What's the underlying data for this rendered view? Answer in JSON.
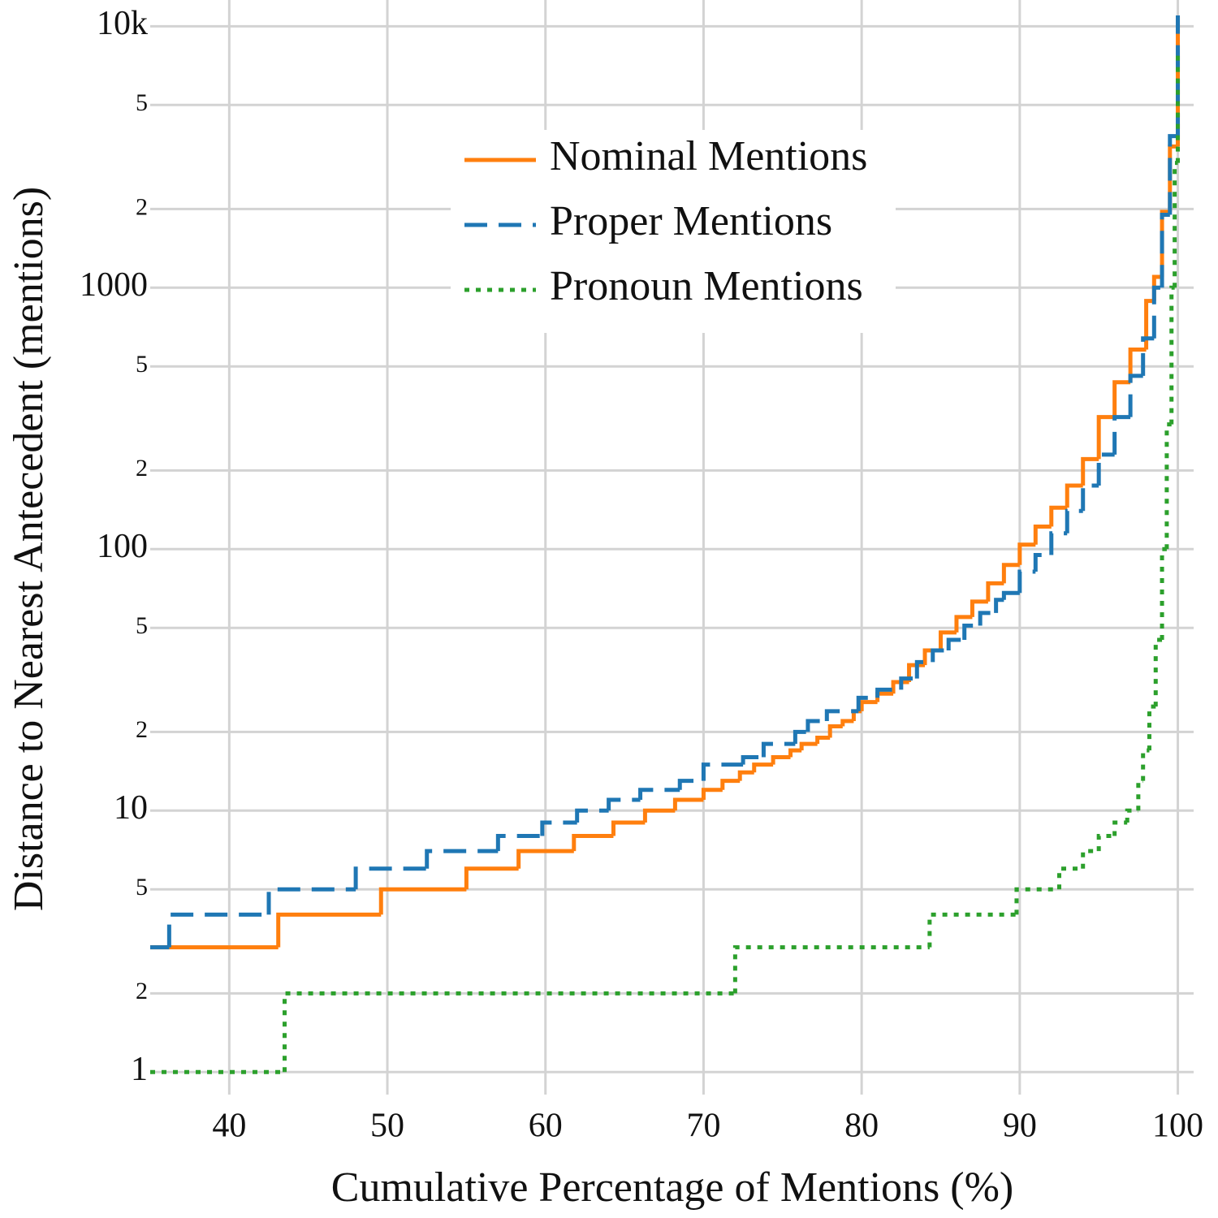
{
  "chart_data": {
    "type": "line",
    "xlabel": "Cumulative Percentage of Mentions (%)",
    "ylabel": "Distance to Nearest Antecedent (mentions)",
    "xlim": [
      35,
      101
    ],
    "xticks": [
      40,
      50,
      60,
      70,
      80,
      90,
      100
    ],
    "ylim": [
      0.82,
      12600
    ],
    "yscale": "log",
    "yticks": [
      1,
      2,
      5,
      10,
      {
        "value": 20,
        "label": "2"
      },
      {
        "value": 50,
        "label": "5"
      },
      100,
      {
        "value": 200,
        "label": "2"
      },
      {
        "value": 500,
        "label": "5"
      },
      1000,
      {
        "value": 2000,
        "label": "2"
      },
      {
        "value": 5000,
        "label": "5"
      },
      {
        "value": 10000,
        "label": "10k"
      }
    ],
    "grid": true,
    "legend": "upper center",
    "series": [
      {
        "name": "Nominal Mentions",
        "color": "#ff7f0e",
        "style": "solid",
        "x": [
          35,
          43.1,
          49.6,
          55,
          58.3,
          61.8,
          64.3,
          66.3,
          68.2,
          70,
          71.2,
          72.3,
          73.2,
          74.4,
          75.5,
          76.2,
          77.2,
          78,
          78.8,
          79.5,
          80,
          81,
          82,
          83,
          84,
          85,
          86,
          87,
          88,
          89,
          90,
          91,
          92,
          93,
          94,
          95,
          96,
          97,
          98,
          98.5,
          99,
          99.5,
          100
        ],
        "values": [
          3,
          4,
          5,
          6,
          7,
          8,
          9,
          10,
          11,
          12,
          13,
          14,
          15,
          16,
          17,
          18,
          19,
          21,
          22,
          24,
          26,
          28,
          31,
          36,
          41,
          48,
          55,
          63,
          74,
          87,
          104,
          122,
          144,
          175,
          221,
          320,
          435,
          580,
          890,
          1100,
          1950,
          3470,
          10900
        ]
      },
      {
        "name": "Proper Mentions",
        "color": "#1f77b4",
        "style": "dashed",
        "x": [
          35,
          36.2,
          42.5,
          48,
          52.5,
          57,
          59.8,
          62,
          64,
          66,
          68.5,
          70,
          72.5,
          73.8,
          75.8,
          76.6,
          77.8,
          79.8,
          81,
          82.5,
          83.5,
          84.5,
          85.5,
          86.5,
          87.5,
          88.5,
          89,
          90,
          91,
          92,
          93,
          94,
          95,
          96,
          97,
          97.8,
          98.5,
          99,
          99.5,
          100
        ],
        "values": [
          3,
          4,
          5,
          6,
          7,
          8,
          9,
          10,
          11,
          12,
          13,
          15,
          16,
          18,
          20,
          22,
          24,
          27,
          29,
          32,
          37,
          41,
          45,
          51,
          57,
          64,
          68,
          82,
          95,
          115,
          140,
          175,
          230,
          320,
          460,
          640,
          1000,
          1900,
          3800,
          11000
        ]
      },
      {
        "name": "Pronoun Mentions",
        "color": "#2ca02c",
        "style": "dotted",
        "x": [
          35,
          43.5,
          72,
          84.3,
          89.8,
          92.5,
          94,
          95,
          96,
          96.8,
          97.5,
          97.8,
          98.2,
          98.6,
          99,
          99.3,
          99.6,
          99.8,
          100
        ],
        "values": [
          1,
          2,
          3,
          4,
          5,
          6,
          7,
          8,
          9,
          10,
          13,
          17,
          25,
          45,
          100,
          300,
          1000,
          3000,
          8000
        ]
      }
    ]
  }
}
